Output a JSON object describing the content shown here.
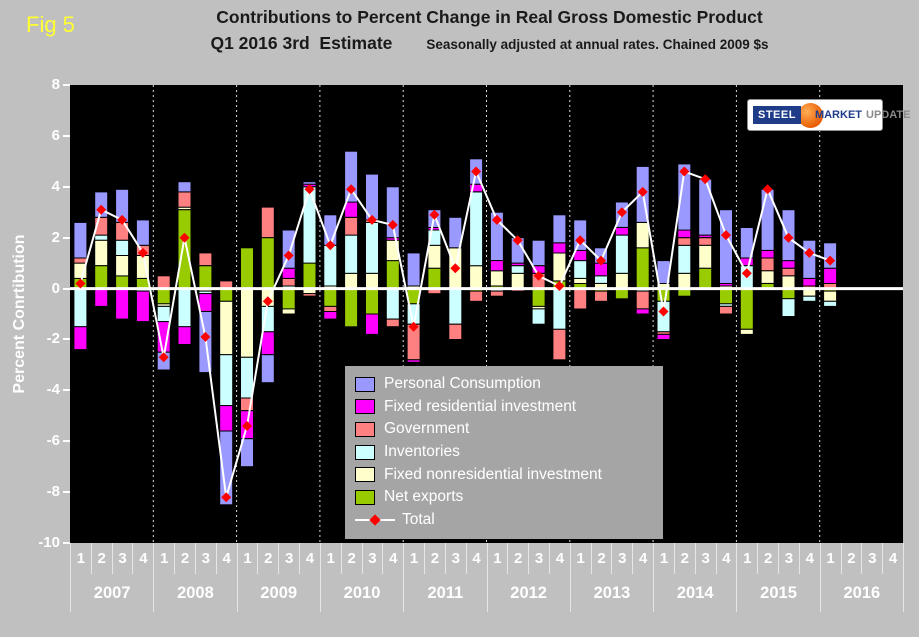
{
  "figure_label": "Fig 5",
  "logo": {
    "steel": "STEEL",
    "market": "MARKET",
    "update": "UPDATE"
  },
  "colors": {
    "background": "#c0c0c0",
    "plot_background": "#000000",
    "axis_text": "#ffffff",
    "title_text": "#1a1a1a",
    "figure_label": "#ffff33",
    "legend_background": "#a5a5a5",
    "zero_line": "#ffffff"
  },
  "chart_data": {
    "type": "bar",
    "stacked": true,
    "title": "Contributions to Percent Change in Real Gross Domestic Product",
    "subtitle": "Q1 2016 3rd  Estimate",
    "note": "Seasonally adjusted at annual rates. Chained 2009 $s",
    "ylabel": "Percent Conrtibution",
    "ylim": [
      -10,
      8
    ],
    "ytick_step": 2,
    "grid": "vertical-dashed-year-separators",
    "legend_position": "inside-lower-center",
    "years": [
      "2007",
      "2008",
      "2009",
      "2010",
      "2011",
      "2012",
      "2013",
      "2014",
      "2015",
      "2016"
    ],
    "quarter_labels": [
      "1",
      "2",
      "3",
      "4"
    ],
    "axis_slots": 40,
    "stack_order_note": "series listed in legend order; plotted nearest-axis-first from last series to first",
    "series": [
      {
        "name": "Personal Consumption",
        "color": "#9999ff",
        "values": [
          1.4,
          1.0,
          1.3,
          1.0,
          -0.7,
          0.4,
          -2.4,
          -2.9,
          -1.1,
          -1.1,
          1.5,
          0.1,
          1.2,
          2.0,
          1.8,
          2.0,
          1.3,
          0.7,
          1.2,
          1.0,
          1.9,
          1.0,
          1.0,
          1.1,
          1.2,
          0.6,
          1.0,
          2.2,
          0.9,
          2.6,
          2.2,
          2.9,
          1.2,
          2.4,
          2.0,
          1.5,
          1.0
        ]
      },
      {
        "name": "Fixed residential investment",
        "color": "#ff00ff",
        "values": [
          -0.9,
          -0.7,
          -1.2,
          -1.2,
          -1.2,
          -0.7,
          -0.7,
          -1.0,
          -1.1,
          -0.9,
          0.4,
          0.1,
          -0.3,
          0.6,
          -0.8,
          0.1,
          -0.1,
          0.1,
          0.0,
          0.3,
          0.4,
          0.1,
          0.3,
          0.4,
          0.4,
          0.5,
          0.3,
          -0.2,
          -0.2,
          0.3,
          0.1,
          0.1,
          0.3,
          0.3,
          0.3,
          0.3,
          0.6
        ]
      },
      {
        "name": "Government",
        "color": "#ff8080",
        "values": [
          0.2,
          0.7,
          0.7,
          0.4,
          0.5,
          0.6,
          0.5,
          0.3,
          -0.5,
          1.2,
          0.3,
          -0.1,
          -0.2,
          0.7,
          0.1,
          -0.3,
          -1.4,
          -0.2,
          -0.6,
          -0.4,
          -0.2,
          -0.1,
          0.6,
          -1.2,
          -0.8,
          -0.4,
          0.0,
          -0.7,
          -0.1,
          0.3,
          0.3,
          -0.3,
          0.0,
          0.5,
          0.3,
          0.1,
          0.2
        ]
      },
      {
        "name": "Inventories",
        "color": "#ccffff",
        "values": [
          -1.5,
          0.2,
          0.6,
          -0.1,
          -0.6,
          -1.5,
          -0.1,
          -2.0,
          -1.6,
          -1.0,
          0.1,
          3.0,
          1.6,
          1.5,
          2.0,
          -1.2,
          -0.8,
          0.6,
          -1.4,
          2.9,
          -0.1,
          0.3,
          -0.6,
          -1.6,
          0.7,
          0.3,
          1.5,
          -0.1,
          -1.2,
          1.1,
          0.0,
          -0.1,
          0.9,
          0.0,
          -0.7,
          -0.2,
          -0.2
        ]
      },
      {
        "name": "Fixed nonresidential investment",
        "color": "#ffffcc",
        "values": [
          0.6,
          1.0,
          0.8,
          0.9,
          -0.1,
          0.1,
          -0.1,
          -2.1,
          -2.7,
          -0.7,
          -0.2,
          -0.2,
          0.1,
          0.6,
          0.6,
          0.8,
          0.1,
          0.9,
          1.6,
          0.9,
          0.6,
          0.6,
          -0.1,
          1.1,
          0.2,
          0.2,
          0.6,
          1.0,
          0.2,
          0.6,
          0.9,
          0.1,
          -0.2,
          0.5,
          0.5,
          -0.3,
          -0.4
        ]
      },
      {
        "name": "Net exports",
        "color": "#99cc00",
        "values": [
          0.4,
          0.9,
          0.5,
          0.4,
          -0.6,
          3.1,
          0.9,
          -0.5,
          1.6,
          2.0,
          -0.8,
          1.0,
          -0.7,
          -1.5,
          -1.0,
          1.1,
          -0.6,
          0.8,
          0.0,
          -0.1,
          0.1,
          0.0,
          -0.7,
          0.3,
          0.2,
          -0.1,
          -0.4,
          1.6,
          -0.5,
          -0.3,
          0.8,
          -0.6,
          -1.6,
          0.2,
          -0.4,
          0.0,
          -0.1
        ]
      }
    ],
    "total": {
      "name": "Total",
      "line_color": "#ffffff",
      "marker_color": "#ff0000",
      "values": [
        0.2,
        3.1,
        2.7,
        1.4,
        -2.7,
        2.0,
        -1.9,
        -8.2,
        -5.4,
        -0.5,
        1.3,
        3.9,
        1.7,
        3.9,
        2.7,
        2.5,
        -1.5,
        2.9,
        0.8,
        4.6,
        2.7,
        1.9,
        0.5,
        0.1,
        1.9,
        1.1,
        3.0,
        3.8,
        -0.9,
        4.6,
        4.3,
        2.1,
        0.6,
        3.9,
        2.0,
        1.4,
        1.1
      ]
    }
  }
}
